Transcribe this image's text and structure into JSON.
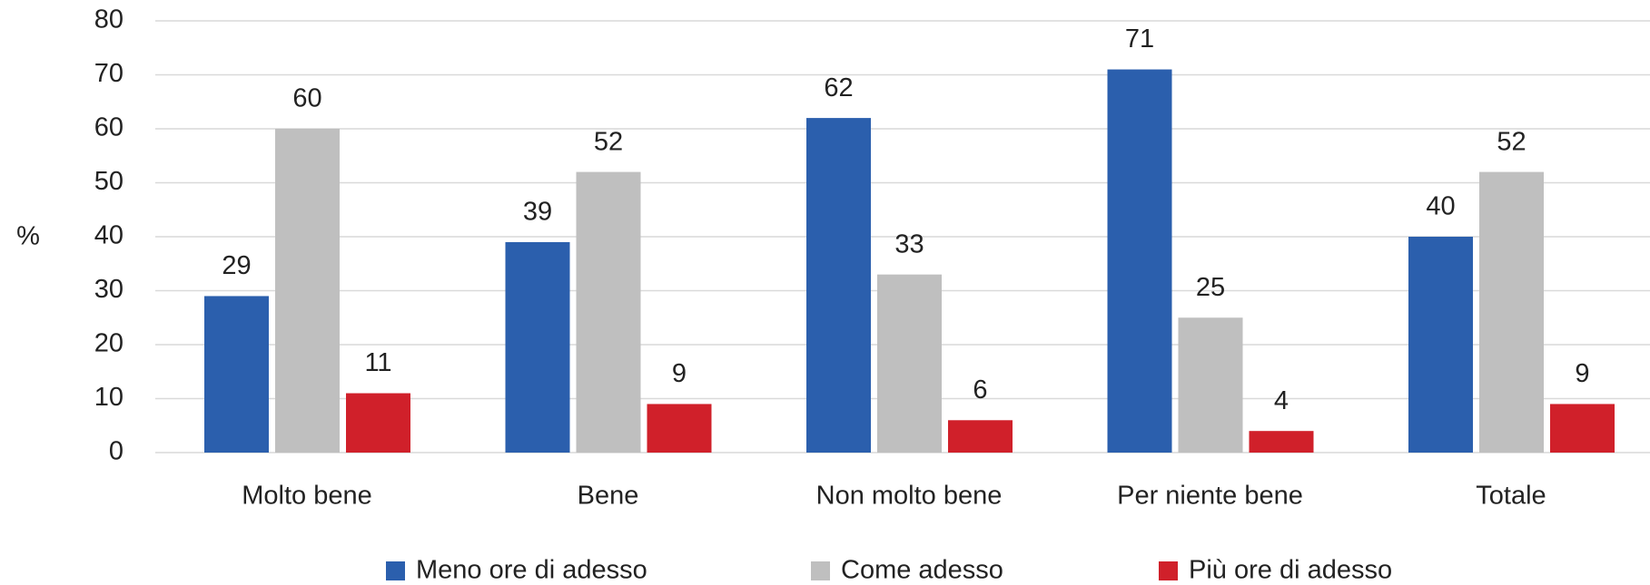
{
  "chart_data": {
    "type": "bar",
    "y_label": "%",
    "categories": [
      "Molto bene",
      "Bene",
      "Non molto bene",
      "Per niente bene",
      "Totale"
    ],
    "series": [
      {
        "name": "Meno ore di adesso",
        "color": "#2b5fad",
        "values": [
          29,
          39,
          62,
          71,
          40
        ]
      },
      {
        "name": "Come adesso",
        "color": "#bfbfbf",
        "values": [
          60,
          52,
          33,
          25,
          52
        ]
      },
      {
        "name": "Più ore di adesso",
        "color": "#d0202a",
        "values": [
          11,
          9,
          6,
          4,
          9
        ]
      }
    ],
    "ylim": [
      0,
      80
    ],
    "yticks": [
      0,
      10,
      20,
      30,
      40,
      50,
      60,
      70,
      80
    ],
    "grid": true,
    "legend": "bottom"
  }
}
